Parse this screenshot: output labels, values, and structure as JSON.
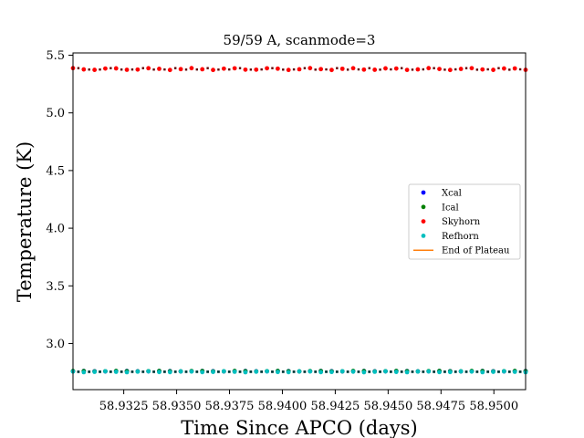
{
  "chart_data": {
    "type": "scatter",
    "title": "59/59 A, scanmode=3",
    "xlabel": "Time Since APCO (days)",
    "ylabel": "Temperature (K)",
    "xlim": [
      58.9301,
      58.9515
    ],
    "ylim": [
      2.6,
      5.52
    ],
    "x_ticks": [
      58.9325,
      58.935,
      58.9375,
      58.94,
      58.9425,
      58.945,
      58.9475,
      58.95
    ],
    "x_tick_labels": [
      "58.9325",
      "58.9350",
      "58.9375",
      "58.9400",
      "58.9425",
      "58.9450",
      "58.9475",
      "58.9500"
    ],
    "y_ticks": [
      3.0,
      3.5,
      4.0,
      4.5,
      5.0,
      5.5
    ],
    "y_tick_labels": [
      "3.0",
      "3.5",
      "4.0",
      "4.5",
      "5.0",
      "5.5"
    ],
    "grid": false,
    "legend_position": "center-right",
    "sampling": {
      "x_start": 58.9301,
      "x_end": 58.9515,
      "count": 43
    },
    "series": [
      {
        "name": "Xcal",
        "color": "#0000ff",
        "marker": "dot",
        "y_mean": 2.76,
        "y_jitter": 0.002,
        "hidden_under": "Refhorn"
      },
      {
        "name": "Ical",
        "color": "#008000",
        "marker": "dot",
        "y_mean": 2.76,
        "y_jitter": 0.002,
        "hidden_under": "Refhorn"
      },
      {
        "name": "Skyhorn",
        "color": "#ff0000",
        "marker": "dot",
        "y_mean": 5.38,
        "y_jitter": 0.008
      },
      {
        "name": "Refhorn",
        "color": "#00bfbf",
        "marker": "dot",
        "y_mean": 2.755,
        "y_jitter": 0.004
      }
    ],
    "lines": [
      {
        "name": "End of Plateau",
        "color": "#ff7f0e",
        "style": "solid"
      }
    ]
  }
}
